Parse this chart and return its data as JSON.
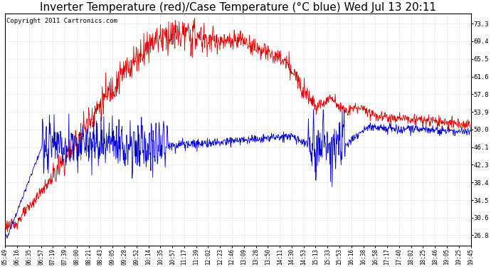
{
  "title": "Inverter Temperature (red)/Case Temperature (°C blue) Wed Jul 13 20:11",
  "copyright": "Copyright 2011 Cartronics.com",
  "y_ticks": [
    26.8,
    30.6,
    34.5,
    38.4,
    42.3,
    46.1,
    50.0,
    53.9,
    57.8,
    61.6,
    65.5,
    69.4,
    73.3
  ],
  "y_min": 24.5,
  "y_max": 75.5,
  "x_labels": [
    "05:49",
    "06:16",
    "06:35",
    "06:57",
    "07:19",
    "07:39",
    "08:00",
    "08:21",
    "08:43",
    "09:05",
    "09:28",
    "09:52",
    "10:14",
    "10:35",
    "10:57",
    "11:17",
    "11:39",
    "12:02",
    "12:23",
    "12:46",
    "13:09",
    "13:28",
    "13:50",
    "14:11",
    "14:30",
    "14:53",
    "15:13",
    "15:33",
    "15:53",
    "16:16",
    "16:38",
    "16:58",
    "17:17",
    "17:40",
    "18:02",
    "18:25",
    "18:46",
    "19:05",
    "19:25",
    "19:45"
  ],
  "background_color": "#ffffff",
  "plot_bg_color": "#ffffff",
  "grid_color": "#b0b0b0",
  "red_color": "#dd0000",
  "blue_color": "#0000cc",
  "title_fontsize": 11,
  "copyright_fontsize": 6.5
}
